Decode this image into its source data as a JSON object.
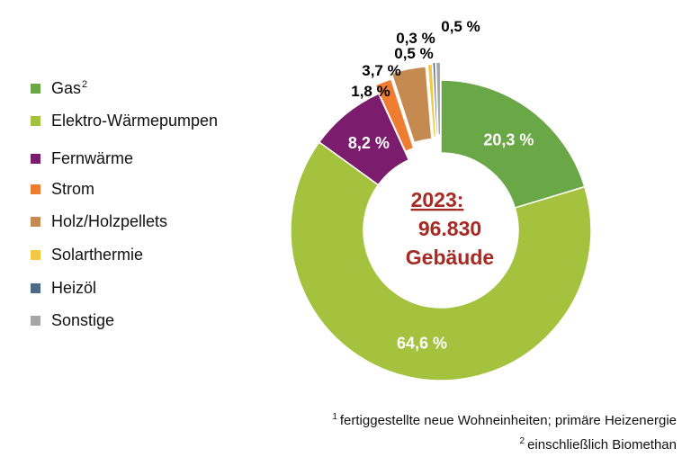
{
  "chart_data": {
    "type": "pie",
    "variant": "donut",
    "center_label": {
      "year": "2023",
      "colon": ":",
      "count": "96.830",
      "unit": "Gebäude"
    },
    "slices": [
      {
        "name": "Gas",
        "sup": "2",
        "value": 20.3,
        "label": "20,3 %",
        "color": "#6aa746"
      },
      {
        "name": "Elektro-Wärmepumpen",
        "value": 64.6,
        "label": "64,6 %",
        "color": "#a5c23f"
      },
      {
        "name": "Fernwärme",
        "value": 8.2,
        "label": "8,2 %",
        "color": "#7b1c6d"
      },
      {
        "name": "Strom",
        "value": 1.8,
        "label": "1,8 %",
        "color": "#ee7d31"
      },
      {
        "name": "Holz/Holzpellets",
        "value": 3.7,
        "label": "3,7 %",
        "color": "#c48a4f"
      },
      {
        "name": "Solarthermie",
        "value": 0.5,
        "label": "0,5 %",
        "color": "#f4c842"
      },
      {
        "name": "Heizöl",
        "value": 0.3,
        "label": "0,3 %",
        "color": "#4c6a86"
      },
      {
        "name": "Sonstige",
        "value": 0.5,
        "label": "0,5 %",
        "color": "#a6a6a6"
      }
    ],
    "legend_position": "left"
  },
  "footnotes": {
    "note1_mark": "1",
    "note1_text": "fertiggestellte neue Wohneinheiten; primäre Heizenergie",
    "note2_mark": "2",
    "note2_text": "einschließlich Biomethan"
  }
}
